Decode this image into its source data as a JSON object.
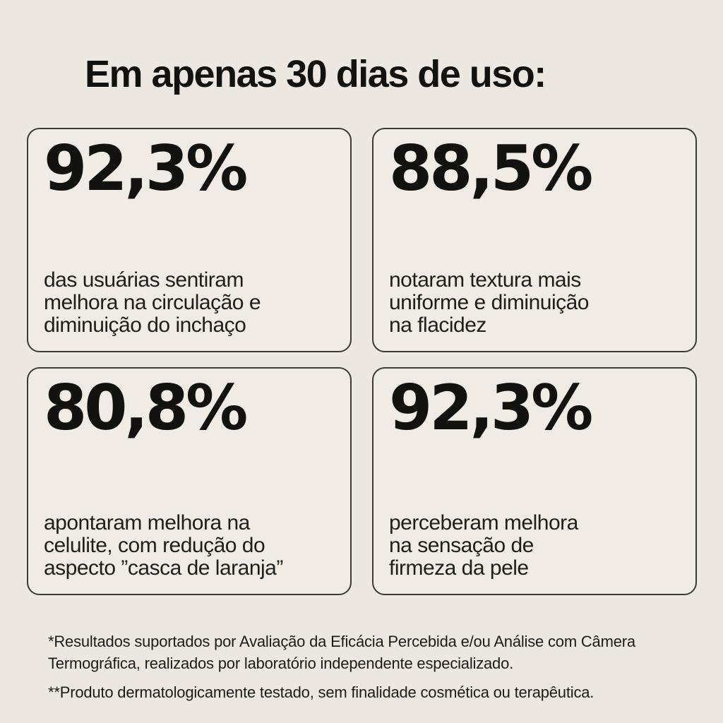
{
  "page": {
    "background_color": "#ECE8E1",
    "card_background_color": "#F0ECE5",
    "card_border_color": "#3B3A36",
    "text_color": "#161614"
  },
  "header": {
    "title": "Em apenas 30 dias de uso:"
  },
  "stats": [
    {
      "value": "92,3%",
      "description": "das usuárias sentiram\nmelhora na circulação e\ndiminuição do inchaço"
    },
    {
      "value": "88,5%",
      "description": "notaram textura mais\nuniforme e diminuição\nna flacidez"
    },
    {
      "value": "80,8%",
      "description": "apontaram melhora na\ncelulite, com redução do\naspecto ”casca de laranja”"
    },
    {
      "value": "92,3%",
      "description": "perceberam melhora\nna sensação de\nfirmeza da pele"
    }
  ],
  "footnotes": [
    "*Resultados suportados por Avaliação da Eficácia Percebida e/ou Análise com Câmera\nTermográfica, realizados por laboratório independente especializado.",
    "**Produto dermatologicamente testado, sem finalidade cosmética ou terapêutica."
  ]
}
